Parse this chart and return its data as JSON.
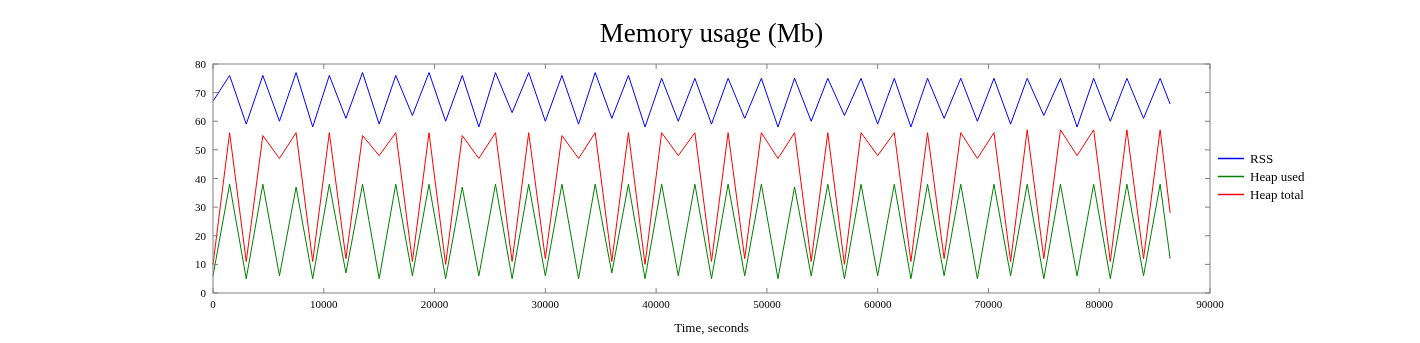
{
  "chart_data": {
    "type": "line",
    "title": "Memory usage (Mb)",
    "xlabel": "Time, seconds",
    "legend": "right",
    "grid": false,
    "line_style": "solid",
    "xlim": [
      0,
      90000
    ],
    "xticks": [
      0,
      10000,
      20000,
      30000,
      40000,
      50000,
      60000,
      70000,
      80000,
      90000
    ],
    "ylim": [
      0,
      80
    ],
    "yticks": [
      0,
      10,
      20,
      30,
      40,
      50,
      60,
      70,
      80
    ],
    "x": [
      0,
      1500,
      3000,
      4500,
      6000,
      7500,
      9000,
      10500,
      12000,
      13500,
      15000,
      16500,
      18000,
      19500,
      21000,
      22500,
      24000,
      25500,
      27000,
      28500,
      30000,
      31500,
      33000,
      34500,
      36000,
      37500,
      39000,
      40500,
      42000,
      43500,
      45000,
      46500,
      48000,
      49500,
      51000,
      52500,
      54000,
      55500,
      57000,
      58500,
      60000,
      61500,
      63000,
      64500,
      66000,
      67500,
      69000,
      70500,
      72000,
      73500,
      75000,
      76500,
      78000,
      79500,
      81000,
      82500,
      84000,
      85500,
      86400
    ],
    "series": [
      {
        "name": "RSS",
        "color": "#0000ff",
        "values": [
          67,
          76,
          59,
          76,
          60,
          77,
          58,
          76,
          61,
          77,
          59,
          76,
          62,
          77,
          60,
          76,
          58,
          77,
          63,
          77,
          60,
          76,
          59,
          77,
          61,
          76,
          58,
          75,
          60,
          75,
          59,
          75,
          61,
          75,
          58,
          75,
          60,
          75,
          62,
          75,
          59,
          75,
          58,
          75,
          61,
          75,
          60,
          75,
          59,
          75,
          62,
          75,
          58,
          75,
          60,
          75,
          61,
          75,
          66
        ]
      },
      {
        "name": "Heap used",
        "color": "#008000",
        "values": [
          6,
          38,
          5,
          38,
          6,
          37,
          5,
          38,
          7,
          38,
          5,
          38,
          6,
          38,
          5,
          37,
          6,
          38,
          5,
          38,
          6,
          38,
          5,
          38,
          7,
          38,
          5,
          38,
          6,
          38,
          5,
          38,
          6,
          38,
          5,
          37,
          6,
          38,
          5,
          38,
          6,
          38,
          5,
          38,
          6,
          38,
          5,
          38,
          6,
          38,
          5,
          38,
          6,
          38,
          5,
          38,
          6,
          38,
          12
        ]
      },
      {
        "name": "Heap total",
        "color": "#ff0000",
        "values": [
          10,
          56,
          11,
          55,
          47,
          56,
          11,
          56,
          12,
          55,
          48,
          56,
          11,
          56,
          10,
          55,
          47,
          56,
          11,
          56,
          12,
          55,
          47,
          56,
          11,
          56,
          10,
          56,
          48,
          56,
          11,
          56,
          12,
          56,
          47,
          56,
          11,
          56,
          10,
          56,
          48,
          56,
          11,
          56,
          12,
          56,
          47,
          56,
          11,
          57,
          12,
          57,
          48,
          57,
          11,
          57,
          12,
          57,
          28
        ]
      }
    ]
  }
}
